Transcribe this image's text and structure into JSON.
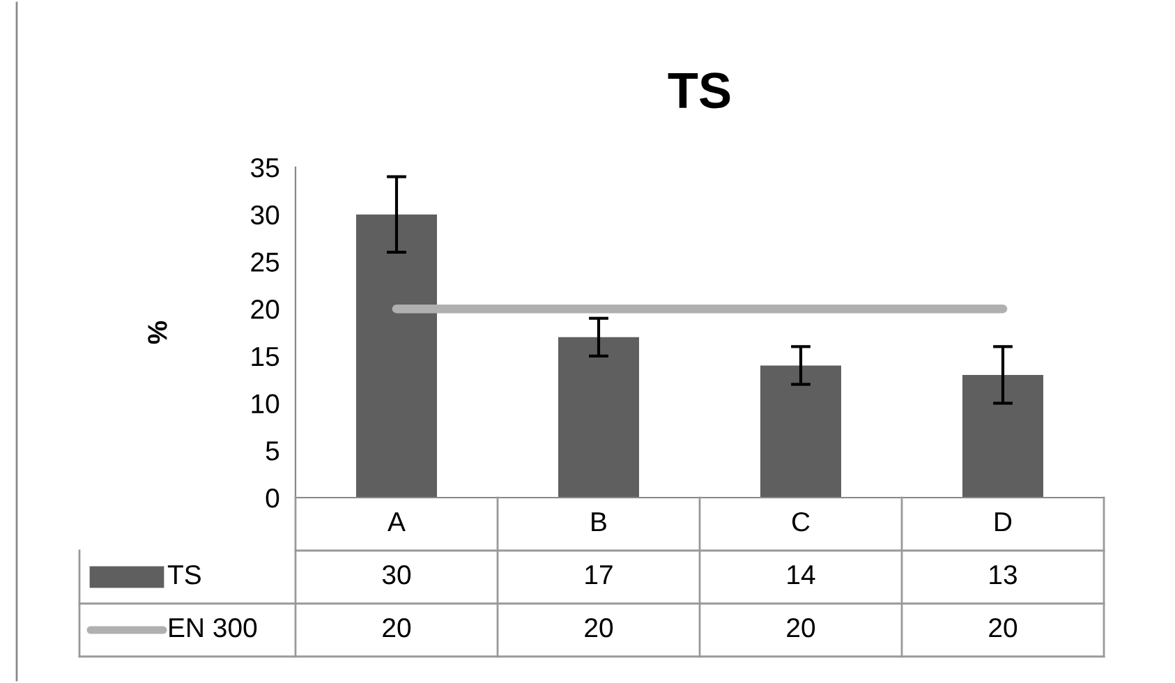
{
  "chart_data": {
    "type": "bar",
    "title": "TS",
    "ylabel": "%",
    "categories": [
      "A",
      "B",
      "C",
      "D"
    ],
    "series": [
      {
        "name": "TS",
        "color": "#5f5f5f",
        "values": [
          30,
          17,
          14,
          13
        ],
        "errors": [
          [
            26,
            34
          ],
          [
            15,
            19
          ],
          [
            12,
            16
          ],
          [
            10,
            16
          ]
        ]
      },
      {
        "name": "EN 300",
        "type": "line",
        "color": "#b0b0b0",
        "values": [
          20,
          20,
          20,
          20
        ]
      }
    ],
    "ylim": [
      0,
      35
    ],
    "yticks": [
      0,
      5,
      10,
      15,
      20,
      25,
      30,
      35
    ],
    "grid": false,
    "data_labels": true,
    "legend": "bottom",
    "marker": "none"
  }
}
